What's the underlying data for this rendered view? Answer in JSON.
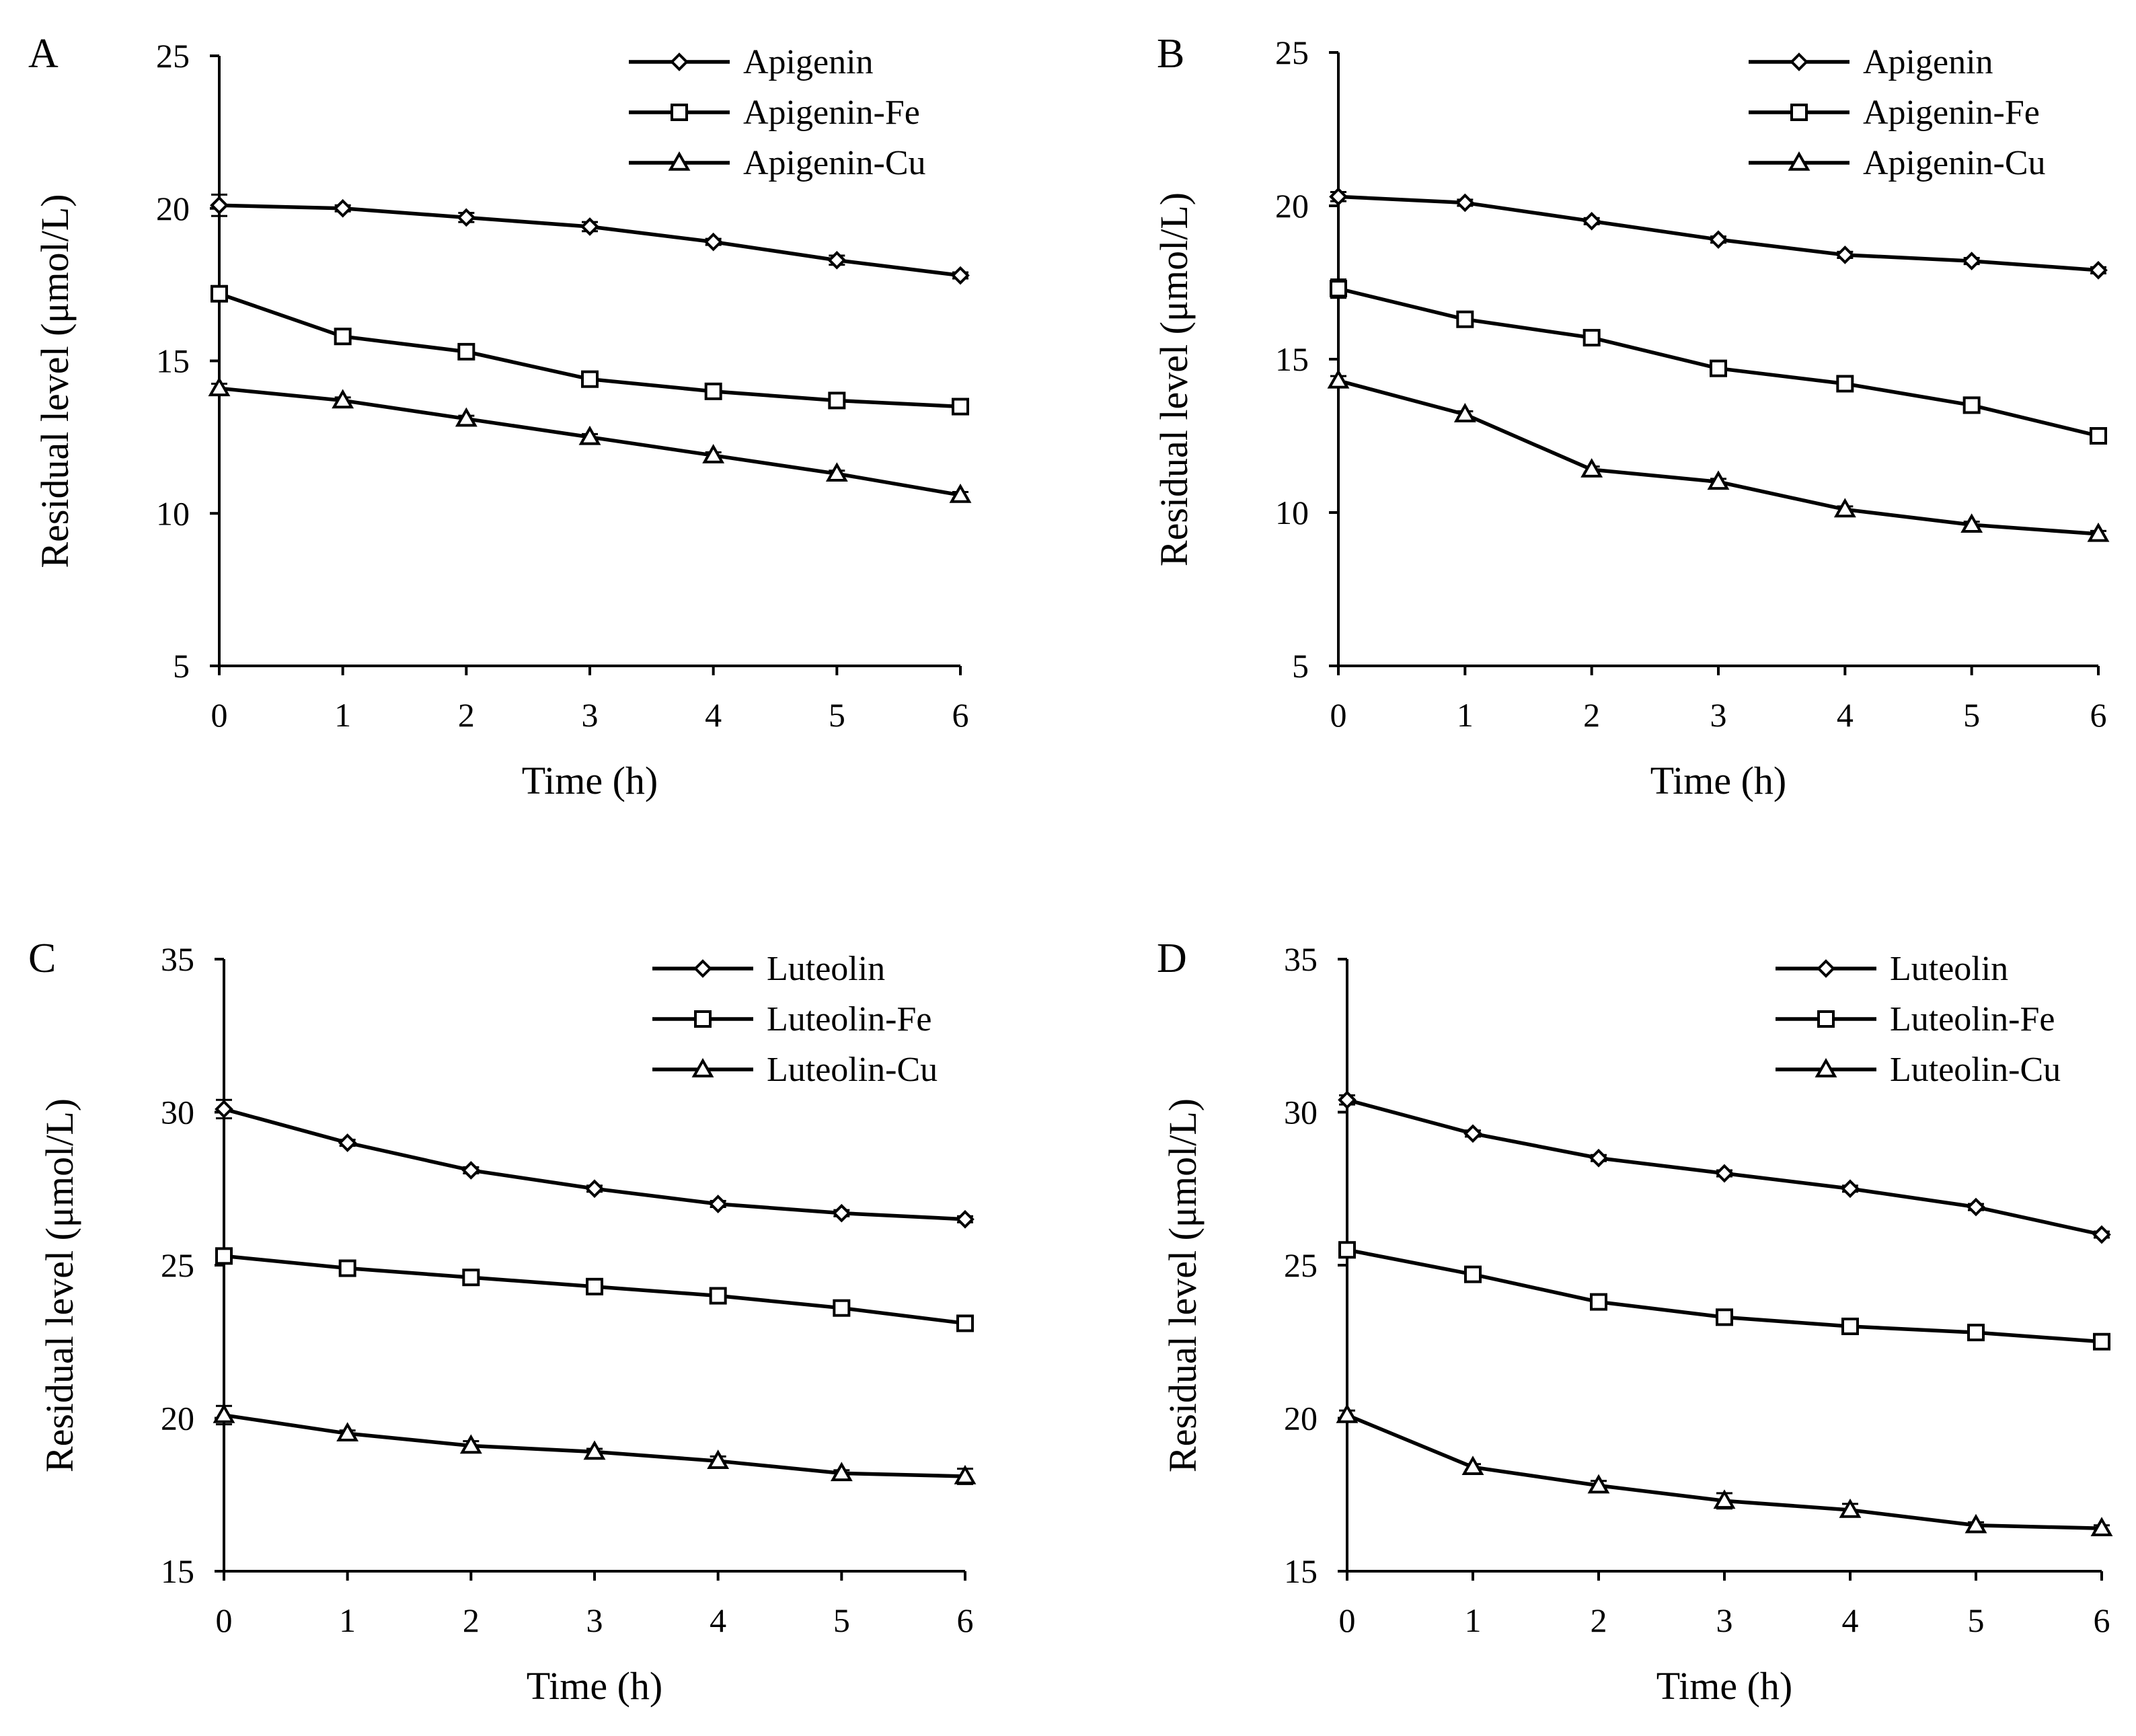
{
  "chart_data": [
    {
      "type": "line",
      "panel_label": "A",
      "xlabel": "Time (h)",
      "ylabel": "Residual level (μmol/L)",
      "x": [
        0,
        1,
        2,
        3,
        4,
        5,
        6
      ],
      "x_ticks": [
        "0",
        "1",
        "2",
        "3",
        "4",
        "5",
        "6"
      ],
      "xlim": [
        0,
        6
      ],
      "ylim": [
        5,
        25
      ],
      "y_ticks": [
        "5",
        "10",
        "15",
        "20",
        "25"
      ],
      "grid": false,
      "legend_position": "top-right",
      "series": [
        {
          "name": "Apigenin",
          "marker": "diamond",
          "values": [
            20.1,
            20.0,
            19.7,
            19.4,
            18.9,
            18.3,
            17.8
          ],
          "errors": [
            0.35,
            0.1,
            0.15,
            0.15,
            0.1,
            0.15,
            0.1
          ]
        },
        {
          "name": "Apigenin-Fe",
          "marker": "square",
          "values": [
            17.2,
            15.8,
            15.3,
            14.4,
            14.0,
            13.7,
            13.5
          ],
          "errors": [
            0.25,
            0.1,
            0.1,
            0.1,
            0.1,
            0.1,
            0.1
          ]
        },
        {
          "name": "Apigenin-Cu",
          "marker": "triangle",
          "values": [
            14.1,
            13.7,
            13.1,
            12.5,
            11.9,
            11.3,
            10.6
          ],
          "errors": [
            0.15,
            0.1,
            0.1,
            0.1,
            0.1,
            0.1,
            0.1
          ]
        }
      ]
    },
    {
      "type": "line",
      "panel_label": "B",
      "xlabel": "Time (h)",
      "ylabel": "Residual level (μmol/L)",
      "x": [
        0,
        1,
        2,
        3,
        4,
        5,
        6
      ],
      "x_ticks": [
        "0",
        "1",
        "2",
        "3",
        "4",
        "5",
        "6"
      ],
      "xlim": [
        0,
        6
      ],
      "ylim": [
        5,
        25
      ],
      "y_ticks": [
        "5",
        "10",
        "15",
        "20",
        "25"
      ],
      "grid": false,
      "legend_position": "top-right",
      "series": [
        {
          "name": "Apigenin",
          "marker": "diamond",
          "values": [
            20.3,
            20.1,
            19.5,
            18.9,
            18.4,
            18.2,
            17.9
          ],
          "errors": [
            0.15,
            0.1,
            0.1,
            0.1,
            0.1,
            0.1,
            0.1
          ]
        },
        {
          "name": "Apigenin-Fe",
          "marker": "square",
          "values": [
            17.3,
            16.3,
            15.7,
            14.7,
            14.2,
            13.5,
            12.5
          ],
          "errors": [
            0.3,
            0.1,
            0.1,
            0.1,
            0.1,
            0.1,
            0.1
          ]
        },
        {
          "name": "Apigenin-Cu",
          "marker": "triangle",
          "values": [
            14.3,
            13.2,
            11.4,
            11.0,
            10.1,
            9.6,
            9.3
          ],
          "errors": [
            0.15,
            0.1,
            0.1,
            0.1,
            0.1,
            0.1,
            0.1
          ]
        }
      ]
    },
    {
      "type": "line",
      "panel_label": "C",
      "xlabel": "Time (h)",
      "ylabel": "Residual level (μmol/L)",
      "x": [
        0,
        1,
        2,
        3,
        4,
        5,
        6
      ],
      "x_ticks": [
        "0",
        "1",
        "2",
        "3",
        "4",
        "5",
        "6"
      ],
      "xlim": [
        0,
        6
      ],
      "ylim": [
        15,
        35
      ],
      "y_ticks": [
        "15",
        "20",
        "25",
        "30",
        "35"
      ],
      "grid": false,
      "legend_position": "top-right",
      "series": [
        {
          "name": "Luteolin",
          "marker": "diamond",
          "values": [
            30.1,
            29.0,
            28.1,
            27.5,
            27.0,
            26.7,
            26.5
          ],
          "errors": [
            0.3,
            0.1,
            0.1,
            0.1,
            0.1,
            0.1,
            0.1
          ]
        },
        {
          "name": "Luteolin-Fe",
          "marker": "square",
          "values": [
            25.3,
            24.9,
            24.6,
            24.3,
            24.0,
            23.6,
            23.1
          ],
          "errors": [
            0.2,
            0.1,
            0.1,
            0.1,
            0.1,
            0.1,
            0.1
          ]
        },
        {
          "name": "Luteolin-Cu",
          "marker": "triangle",
          "values": [
            20.1,
            19.5,
            19.1,
            18.9,
            18.6,
            18.2,
            18.1
          ],
          "errors": [
            0.3,
            0.1,
            0.15,
            0.1,
            0.15,
            0.1,
            0.25
          ]
        }
      ]
    },
    {
      "type": "line",
      "panel_label": "D",
      "xlabel": "Time (h)",
      "ylabel": "Residual level (μmol/L)",
      "x": [
        0,
        1,
        2,
        3,
        4,
        5,
        6
      ],
      "x_ticks": [
        "0",
        "1",
        "2",
        "3",
        "4",
        "5",
        "6"
      ],
      "xlim": [
        0,
        6
      ],
      "ylim": [
        15,
        35
      ],
      "y_ticks": [
        "15",
        "20",
        "25",
        "30",
        "35"
      ],
      "grid": false,
      "legend_position": "top-right",
      "series": [
        {
          "name": "Luteolin",
          "marker": "diamond",
          "values": [
            30.4,
            29.3,
            28.5,
            28.0,
            27.5,
            26.9,
            26.0
          ],
          "errors": [
            0.15,
            0.1,
            0.1,
            0.1,
            0.1,
            0.1,
            0.1
          ]
        },
        {
          "name": "Luteolin-Fe",
          "marker": "square",
          "values": [
            25.5,
            24.7,
            23.8,
            23.3,
            23.0,
            22.8,
            22.5
          ],
          "errors": [
            0.2,
            0.1,
            0.1,
            0.1,
            0.1,
            0.1,
            0.1
          ]
        },
        {
          "name": "Luteolin-Cu",
          "marker": "triangle",
          "values": [
            20.1,
            18.4,
            17.8,
            17.3,
            17.0,
            16.5,
            16.4
          ],
          "errors": [
            0.15,
            0.1,
            0.15,
            0.25,
            0.2,
            0.1,
            0.1
          ]
        }
      ]
    }
  ]
}
